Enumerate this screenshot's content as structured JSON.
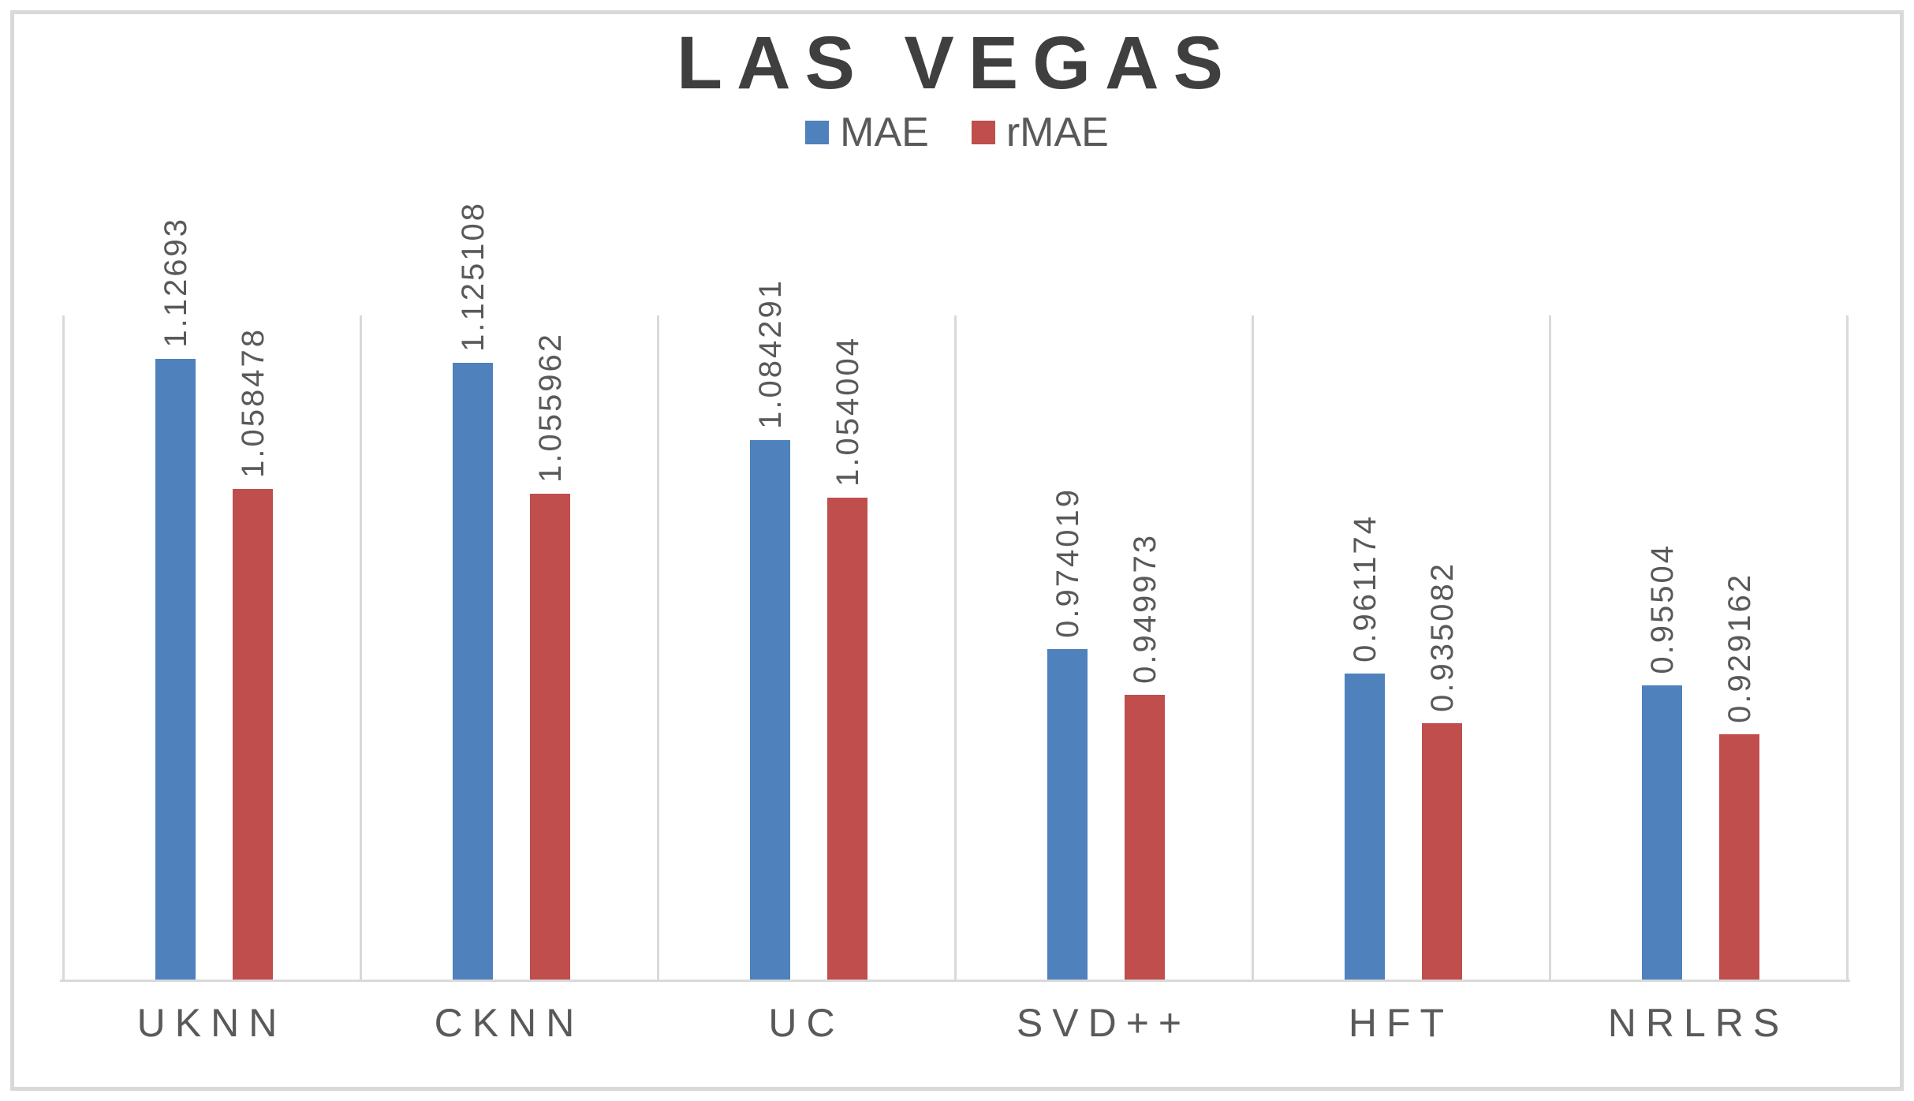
{
  "chart_data": {
    "type": "bar",
    "title": "LAS VEGAS",
    "categories": [
      "UKNN",
      "CKNN",
      "UC",
      "SVD++",
      "HFT",
      "NRLRS"
    ],
    "series": [
      {
        "name": "MAE",
        "color": "#4F81BD",
        "values": [
          1.12693,
          1.125108,
          1.084291,
          0.974019,
          0.961174,
          0.95504
        ],
        "labels": [
          "1.12693",
          "1.125108",
          "1.084291",
          "0.974019",
          "0.961174",
          "0.95504"
        ]
      },
      {
        "name": "rMAE",
        "color": "#BF4E4C",
        "values": [
          1.058478,
          1.055962,
          1.054004,
          0.949973,
          0.935082,
          0.929162
        ],
        "labels": [
          "1.058478",
          "1.055962",
          "1.054004",
          "0.949973",
          "0.935082",
          "0.929162"
        ]
      }
    ],
    "ylim": [
      0.8,
      1.15
    ],
    "xlabel": "",
    "ylabel": "",
    "legend_position": "top",
    "grid": "vertical-category-boundaries",
    "axis_color": "#D9D9D9",
    "label_color": "#595959",
    "title_color": "#3F3F3F"
  }
}
